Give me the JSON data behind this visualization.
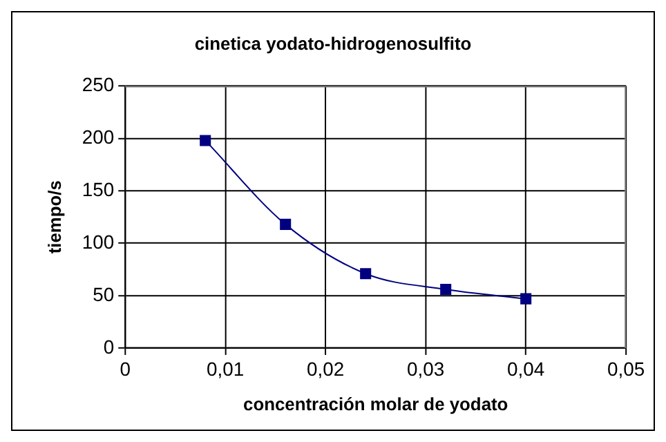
{
  "chart_data": {
    "type": "line",
    "title": "cinetica yodato-hidrogenosulfito",
    "xlabel": "concentración molar de yodato",
    "ylabel": "tiempo/s",
    "x": [
      0.008,
      0.016,
      0.024,
      0.032,
      0.04
    ],
    "series": [
      {
        "color": "#000080",
        "values": [
          198,
          118,
          71,
          56,
          47
        ]
      }
    ],
    "xlim": [
      0,
      0.05
    ],
    "xticks": [
      0,
      {
        "value": 0.01,
        "label": "0,01"
      },
      {
        "value": 0.02,
        "label": "0,02"
      },
      {
        "value": 0.03,
        "label": "0,03"
      },
      {
        "value": 0.04,
        "label": "0,04"
      },
      {
        "value": 0.05,
        "label": "0,05"
      }
    ],
    "ylim": [
      0,
      250
    ],
    "yticks": [
      0,
      50,
      100,
      150,
      200,
      250
    ],
    "grid": true,
    "marker": "square",
    "line_style": "solid",
    "legend": false
  }
}
